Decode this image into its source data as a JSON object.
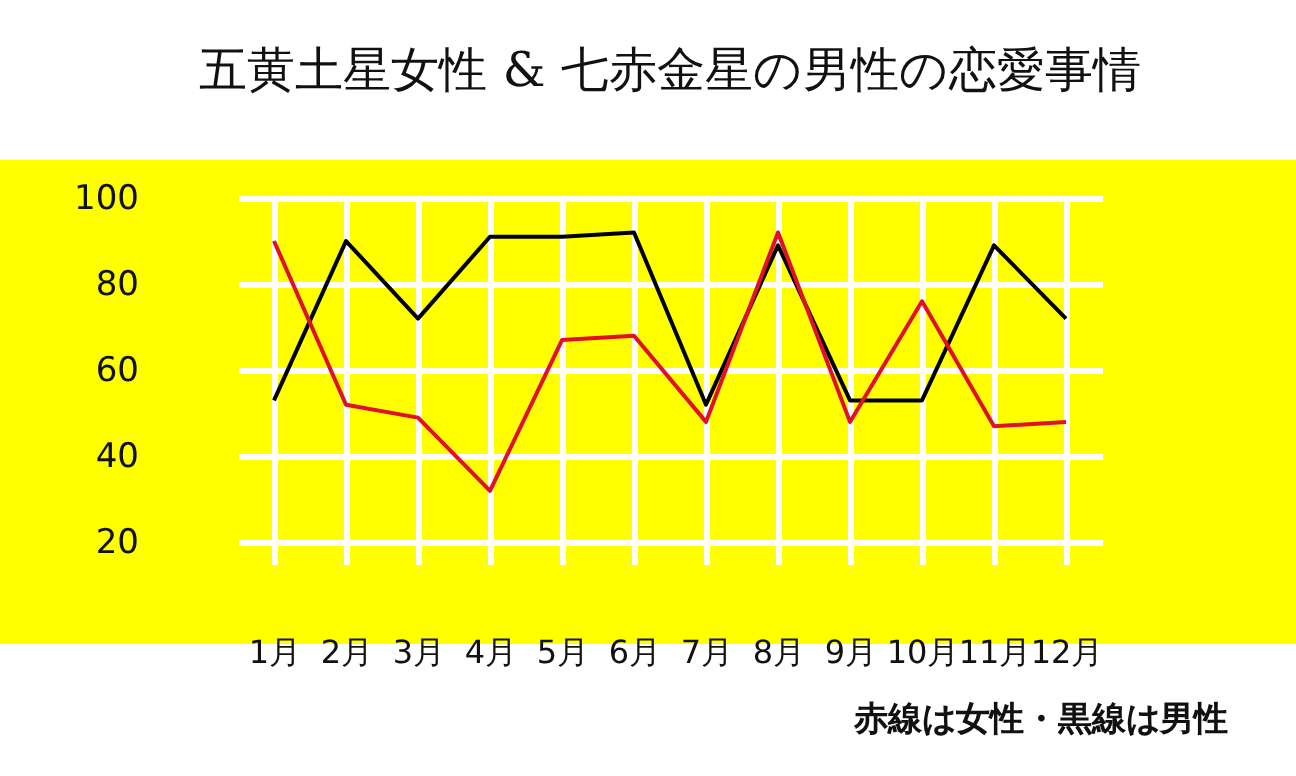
{
  "chart_data": {
    "type": "line",
    "title": "五黄土星女性 & 七赤金星の男性の恋愛事情",
    "categories": [
      "1月",
      "2月",
      "3月",
      "4月",
      "5月",
      "6月",
      "7月",
      "8月",
      "9月",
      "10月",
      "11月",
      "12月"
    ],
    "series": [
      {
        "color": "#000000",
        "values": [
          53,
          90,
          72,
          91,
          91,
          92,
          52,
          89,
          53,
          53,
          89,
          72
        ]
      },
      {
        "color": "#e0102a",
        "values": [
          90,
          52,
          49,
          32,
          67,
          68,
          48,
          92,
          48,
          76,
          47,
          48
        ]
      }
    ],
    "ylim": [
      15,
      100
    ],
    "yticks": [
      20,
      40,
      60,
      80,
      100
    ],
    "grid": true,
    "annotations": [
      "赤線は女性・黒線は男性"
    ]
  }
}
